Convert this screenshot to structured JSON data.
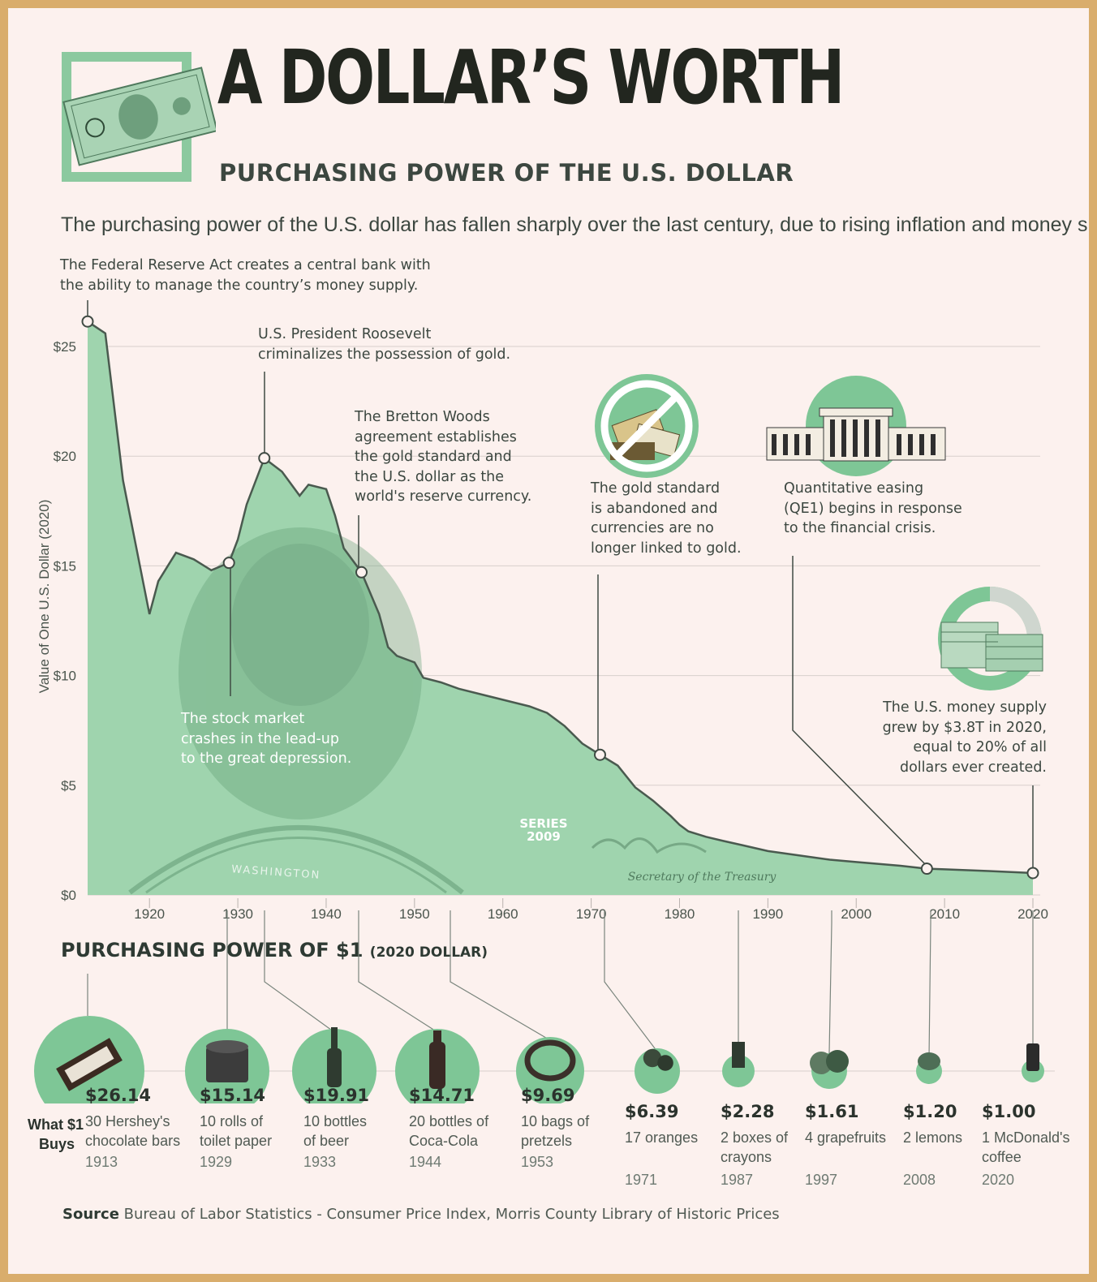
{
  "header": {
    "title": "A DOLLAR’S WORTH",
    "subtitle": "PURCHASING POWER OF THE U.S. DOLLAR",
    "intro": "The purchasing power of the U.S. dollar has fallen sharply over the last century, due to rising inflation and money supply."
  },
  "colors": {
    "accent": "#6fbf8e",
    "fill": "#9fd4ae",
    "line": "#4a5a4f",
    "grid": "#d8d0cc",
    "frame": "#d9ad6c",
    "background": "#fcf1ee"
  },
  "icons": [
    "dollar-bill-icon",
    "no-gold-icon",
    "federal-reserve-icon",
    "money-stack-icon",
    "hersheys-bar-icon",
    "toilet-paper-icon",
    "beer-bottle-icon",
    "coca-cola-bottle-icon",
    "pretzel-icon",
    "oranges-icon",
    "crayons-icon",
    "grapefruit-icon",
    "lemon-icon",
    "coffee-cup-icon"
  ],
  "chart_data": {
    "type": "area",
    "ylabel": "Value of One U.S. Dollar (2020)",
    "yticks": [
      "$25",
      "$20",
      "$15",
      "$10",
      "$5",
      "$0"
    ],
    "xticks": [
      "1920",
      "1930",
      "1940",
      "1950",
      "1960",
      "1970",
      "1980",
      "1990",
      "2000",
      "2010",
      "2020"
    ],
    "ylim": [
      0,
      26
    ],
    "xlim": [
      1913,
      2020
    ],
    "x": [
      1913,
      1915,
      1917,
      1920,
      1921,
      1923,
      1925,
      1927,
      1929,
      1930,
      1931,
      1933,
      1935,
      1937,
      1938,
      1940,
      1941,
      1942,
      1944,
      1946,
      1947,
      1948,
      1950,
      1951,
      1953,
      1955,
      1958,
      1960,
      1963,
      1965,
      1967,
      1969,
      1971,
      1973,
      1975,
      1977,
      1979,
      1980,
      1981,
      1983,
      1985,
      1987,
      1990,
      1995,
      1997,
      2000,
      2005,
      2008,
      2010,
      2015,
      2020
    ],
    "values": [
      26.14,
      25.6,
      18.9,
      12.8,
      14.3,
      15.6,
      15.3,
      14.8,
      15.14,
      16.2,
      17.8,
      19.91,
      19.3,
      18.2,
      18.7,
      18.5,
      17.3,
      15.8,
      14.71,
      12.8,
      11.3,
      10.9,
      10.6,
      9.9,
      9.69,
      9.4,
      9.1,
      8.9,
      8.6,
      8.3,
      7.7,
      6.9,
      6.39,
      5.9,
      4.9,
      4.3,
      3.6,
      3.2,
      2.9,
      2.65,
      2.46,
      2.28,
      2.0,
      1.72,
      1.61,
      1.5,
      1.33,
      1.2,
      1.17,
      1.09,
      1.0
    ],
    "grid": true,
    "annotations": [
      {
        "year": 1913,
        "value": 26.14,
        "text": "The Federal Reserve Act creates a central bank with\nthe ability to manage the country’s money supply."
      },
      {
        "year": 1929,
        "value": 15.14,
        "text": "The stock market\ncrashes in the lead-up\nto the great depression."
      },
      {
        "year": 1933,
        "value": 19.91,
        "text": "U.S. President Roosevelt\ncriminalizes the possession of gold."
      },
      {
        "year": 1944,
        "value": 14.71,
        "text": "The Bretton Woods\nagreement establishes\nthe gold standard and\nthe U.S. dollar as the\nworld's reserve currency."
      },
      {
        "year": 1971,
        "value": 6.39,
        "text": "The gold standard\nis abandoned and\ncurrencies are no\nlonger linked to gold."
      },
      {
        "year": 2008,
        "value": 1.2,
        "text": "Quantitative easing\n(QE1) begins in response\nto the financial crisis."
      },
      {
        "year": 2020,
        "value": 1.0,
        "text": "The U.S. money supply\ngrew by $3.8T in 2020,\nequal to 20% of all\ndollars ever created."
      }
    ],
    "bill_text": {
      "series": "SERIES\n2009",
      "washington": "WASHINGTON",
      "treasury": "Secretary of the Treasury"
    }
  },
  "purchasing": {
    "title": "PURCHASING POWER OF $1",
    "title_note": "(2020 DOLLAR)",
    "row_label": "What $1\nBuys",
    "items": [
      {
        "price": "$26.14",
        "desc": "30 Hershey's\nchocolate bars",
        "year": "1913"
      },
      {
        "price": "$15.14",
        "desc": "10 rolls of\ntoilet paper",
        "year": "1929"
      },
      {
        "price": "$19.91",
        "desc": "10 bottles\nof beer",
        "year": "1933"
      },
      {
        "price": "$14.71",
        "desc": "20 bottles of\nCoca-Cola",
        "year": "1944"
      },
      {
        "price": "$9.69",
        "desc": "10 bags of\npretzels",
        "year": "1953"
      },
      {
        "price": "$6.39",
        "desc": "17 oranges",
        "year": "1971"
      },
      {
        "price": "$2.28",
        "desc": "2 boxes of\ncrayons",
        "year": "1987"
      },
      {
        "price": "$1.61",
        "desc": "4 grapefruits",
        "year": "1997"
      },
      {
        "price": "$1.20",
        "desc": "2 lemons",
        "year": "2008"
      },
      {
        "price": "$1.00",
        "desc": "1 McDonald's\ncoffee",
        "year": "2020"
      }
    ]
  },
  "source": {
    "label": "Source",
    "text": "Bureau of Labor Statistics - Consumer Price Index, Morris County Library of Historic Prices"
  }
}
